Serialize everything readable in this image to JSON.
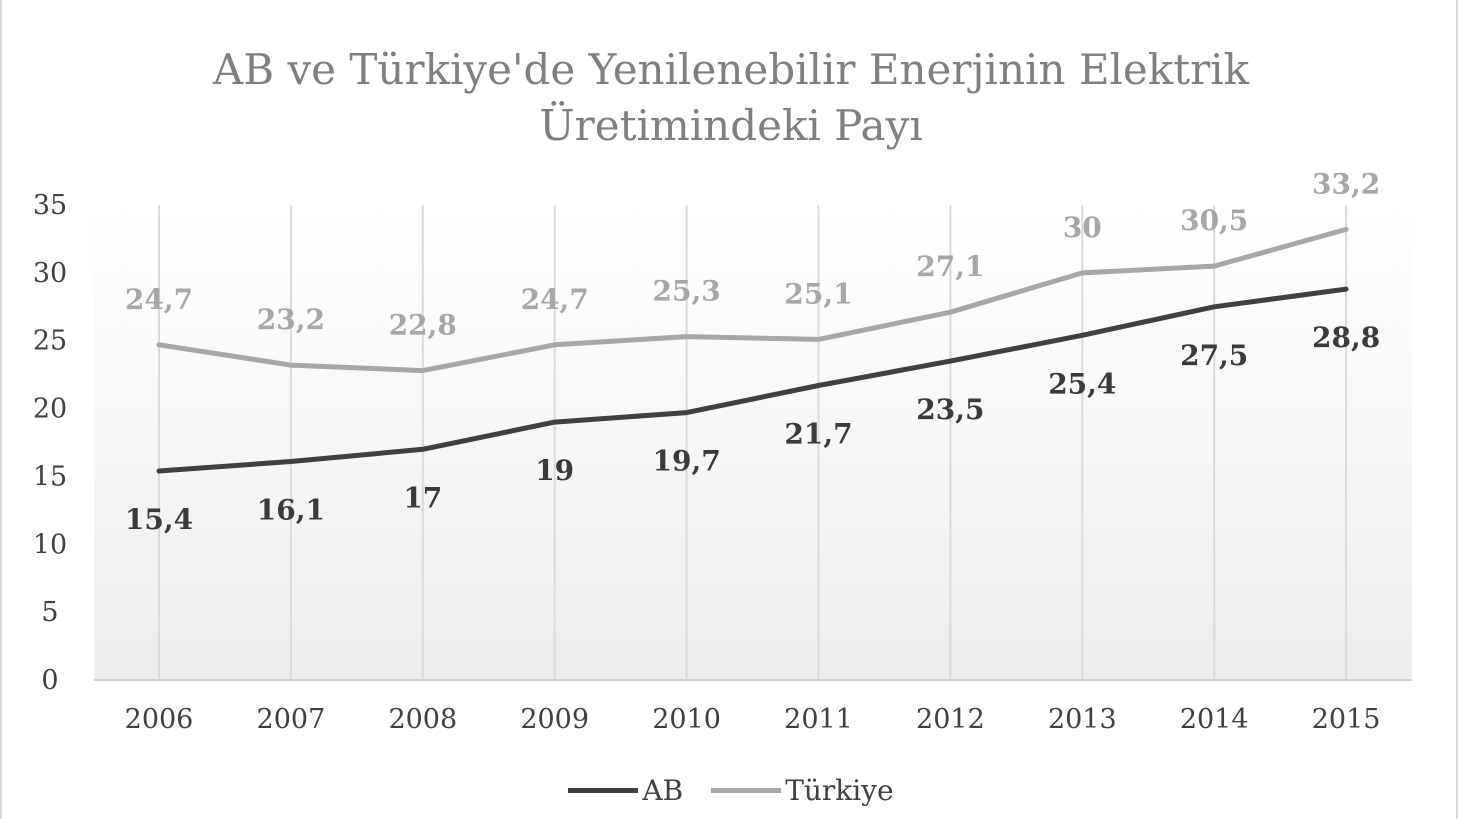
{
  "chart_data": {
    "type": "line",
    "title_lines": [
      "AB ve Türkiye'de Yenilenebilir Enerjinin Elektrik",
      "Üretimindeki Payı"
    ],
    "categories": [
      "2006",
      "2007",
      "2008",
      "2009",
      "2010",
      "2011",
      "2012",
      "2013",
      "2014",
      "2015"
    ],
    "ylim": [
      0,
      35
    ],
    "yticks": [
      "0",
      "5",
      "10",
      "15",
      "20",
      "25",
      "30",
      "35"
    ],
    "grid": "vertical",
    "legend_position": "bottom",
    "series": [
      {
        "name": "AB",
        "color": "#404040",
        "values": [
          15.4,
          16.1,
          17,
          19,
          19.7,
          21.7,
          23.5,
          25.4,
          27.5,
          28.8
        ],
        "labels": [
          "15,4",
          "16,1",
          "17",
          "19",
          "19,7",
          "21,7",
          "23,5",
          "25,4",
          "27,5",
          "28,8"
        ]
      },
      {
        "name": "Türkiye",
        "color": "#a6a6a6",
        "values": [
          24.7,
          23.2,
          22.8,
          24.7,
          25.3,
          25.1,
          27.1,
          30,
          30.5,
          33.2
        ],
        "labels": [
          "24,7",
          "23,2",
          "22,8",
          "24,7",
          "25,3",
          "25,1",
          "27,1",
          "30",
          "30,5",
          "33,2"
        ]
      }
    ]
  }
}
